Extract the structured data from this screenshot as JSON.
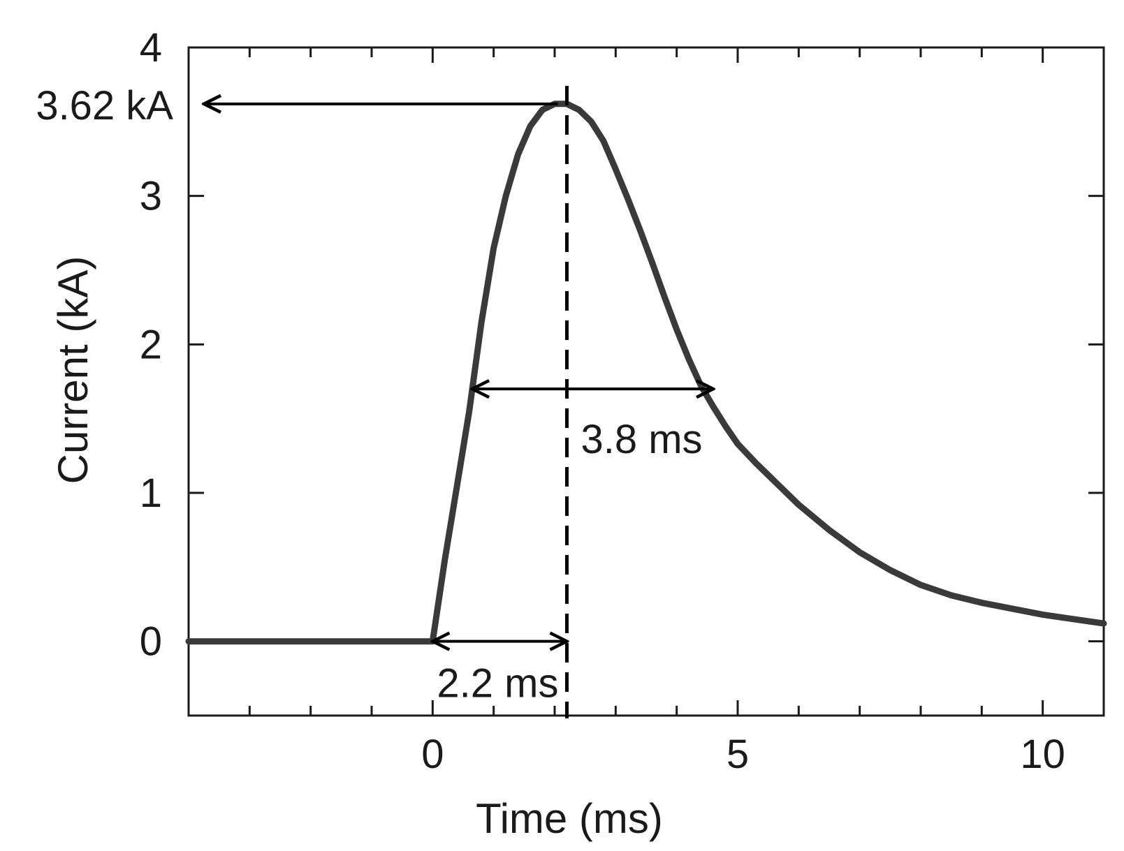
{
  "chart_data": {
    "type": "line",
    "title": "",
    "xlabel": "Time (ms)",
    "ylabel": "Current (kA)",
    "xlim": [
      -4,
      11
    ],
    "ylim": [
      -0.5,
      4
    ],
    "x_ticks": [
      0,
      5,
      10
    ],
    "x_tick_labels": [
      "0",
      "5",
      "10"
    ],
    "x_minor_ticks": [
      -3,
      -2,
      -1,
      1,
      2,
      3,
      4,
      6,
      7,
      8,
      9
    ],
    "y_ticks": [
      0,
      1,
      2,
      3,
      4
    ],
    "y_tick_labels": [
      "0",
      "1",
      "2",
      "3",
      "4"
    ],
    "grid": false,
    "legend": "none",
    "series": [
      {
        "color": "#3a3a3a",
        "x": [
          -4,
          -2,
          0,
          0.2,
          0.4,
          0.6,
          0.8,
          1.0,
          1.2,
          1.4,
          1.6,
          1.8,
          2.0,
          2.2,
          2.4,
          2.6,
          2.8,
          3.0,
          3.2,
          3.4,
          3.6,
          3.8,
          4.0,
          4.2,
          4.4,
          4.6,
          4.8,
          5.0,
          5.3,
          5.6,
          6.0,
          6.5,
          7.0,
          7.5,
          8.0,
          8.5,
          9.0,
          9.5,
          10.0,
          10.5,
          11.0
        ],
        "y": [
          0,
          0,
          0,
          0.55,
          1.05,
          1.55,
          2.15,
          2.65,
          3.0,
          3.28,
          3.47,
          3.58,
          3.62,
          3.62,
          3.58,
          3.5,
          3.37,
          3.18,
          2.98,
          2.77,
          2.55,
          2.32,
          2.1,
          1.9,
          1.72,
          1.58,
          1.45,
          1.33,
          1.2,
          1.08,
          0.92,
          0.75,
          0.6,
          0.48,
          0.38,
          0.31,
          0.26,
          0.22,
          0.18,
          0.15,
          0.12
        ]
      }
    ],
    "peak_line_x": 2.2,
    "annotations": [
      {
        "label": "3.62 kA",
        "kind": "left-arrow-to-axis",
        "x_start": 2.05,
        "y": 3.62
      },
      {
        "label": "3.8 ms",
        "kind": "double-arrow",
        "x_start": 0.65,
        "x_end": 4.6,
        "y": 1.7
      },
      {
        "label": "2.2 ms",
        "kind": "double-arrow",
        "x_start": 0,
        "x_end": 2.2,
        "y": 0
      }
    ]
  }
}
